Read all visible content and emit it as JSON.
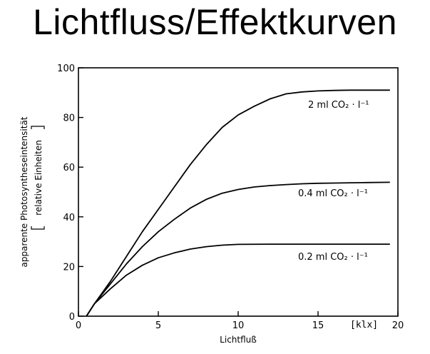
{
  "slide": {
    "title": "Lichtfluss/Effektkurven"
  },
  "chart_data": {
    "type": "line",
    "xlabel": "Lichtfluß",
    "x_unit": "[klx]",
    "ylabel_line1": "apparente Photosyntheseintensität",
    "ylabel_line2": "relative Einheiten",
    "xlim": [
      0,
      20
    ],
    "ylim": [
      0,
      100
    ],
    "x_ticks": [
      0,
      5,
      10,
      15,
      20
    ],
    "y_ticks": [
      0,
      20,
      40,
      60,
      80,
      100
    ],
    "grid": false,
    "series": [
      {
        "name": "2 ml CO₂ · l⁻¹",
        "x": [
          0.5,
          1,
          2,
          3,
          4,
          5,
          6,
          7,
          8,
          9,
          10,
          11,
          12,
          13,
          14,
          15,
          16,
          17,
          18,
          19.5
        ],
        "y": [
          0,
          5,
          14,
          24,
          34,
          43,
          52,
          61,
          69,
          76,
          81,
          84.5,
          87.5,
          89.5,
          90.3,
          90.7,
          90.9,
          91,
          91,
          91
        ]
      },
      {
        "name": "0.4 ml CO₂ · l⁻¹",
        "x": [
          0.5,
          1,
          2,
          3,
          4,
          5,
          6,
          7,
          8,
          9,
          10,
          11,
          12,
          13,
          14,
          15,
          16,
          17,
          18,
          19.5
        ],
        "y": [
          0,
          5,
          13,
          21,
          28,
          34,
          39,
          43.5,
          47,
          49.5,
          51,
          52,
          52.6,
          53,
          53.3,
          53.5,
          53.6,
          53.7,
          53.8,
          53.9
        ]
      },
      {
        "name": "0.2 ml CO₂ · l⁻¹",
        "x": [
          0.5,
          1,
          2,
          3,
          4,
          5,
          6,
          7,
          8,
          9,
          10,
          12,
          14,
          16,
          18,
          19.5
        ],
        "y": [
          0,
          5,
          11,
          16.5,
          20.5,
          23.5,
          25.5,
          27,
          28,
          28.6,
          28.9,
          29,
          29,
          29,
          29,
          29
        ]
      }
    ]
  }
}
